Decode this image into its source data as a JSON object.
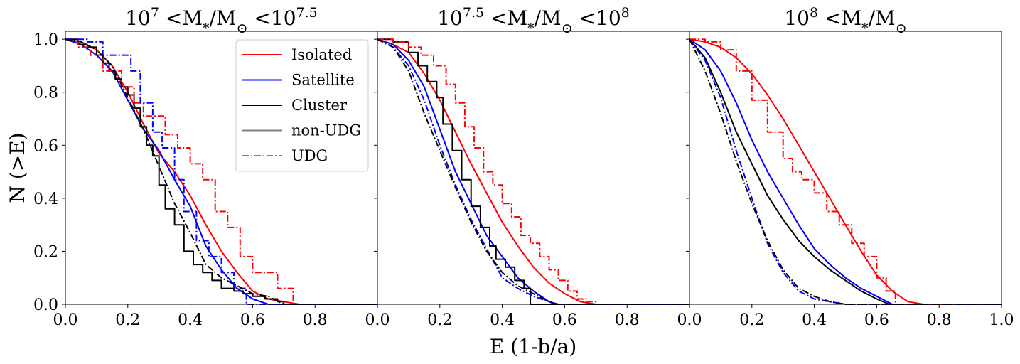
{
  "chart_data": {
    "type": "line",
    "xlabel": "E (1-b/a)",
    "ylabel": "N (>E)",
    "xlim": [
      0,
      1
    ],
    "ylim": [
      0,
      1.03
    ],
    "grid": false,
    "x_ticks": [
      "0.0",
      "0.2",
      "0.4",
      "0.6",
      "0.8"
    ],
    "x_ticks_last_panel": [
      "0.0",
      "0.2",
      "0.4",
      "0.6",
      "0.8",
      "1.0"
    ],
    "y_ticks": [
      "0.0",
      "0.2",
      "0.4",
      "0.6",
      "0.8",
      "1.0"
    ],
    "colors": {
      "Isolated": "#ff0000",
      "Satellite": "#0000ff",
      "Cluster": "#000000"
    },
    "legend": {
      "placement": "upper-right of first panel",
      "entries": [
        {
          "label": "Isolated",
          "color": "#ff0000",
          "style": "solid"
        },
        {
          "label": "Satellite",
          "color": "#0000ff",
          "style": "solid"
        },
        {
          "label": "Cluster",
          "color": "#000000",
          "style": "solid"
        },
        {
          "label": "non-UDG",
          "color": "#808080",
          "style": "solid"
        },
        {
          "label": "UDG",
          "color": "#808080",
          "style": "dashdot"
        }
      ]
    },
    "panels": [
      {
        "title": {
          "a": "10",
          "a_exp": "7",
          "b": " <M",
          "b_sub": "*",
          "c": "/M",
          "c_sub": "⊙",
          "d": " <10",
          "d_exp": "7.5"
        },
        "series": [
          {
            "name": "Isolated",
            "group": "non-UDG",
            "color": "#ff0000",
            "style": "solid",
            "step": false,
            "x": [
              0,
              0.05,
              0.1,
              0.15,
              0.2,
              0.25,
              0.3,
              0.35,
              0.4,
              0.45,
              0.5,
              0.55,
              0.6,
              0.65,
              0.7,
              0.75
            ],
            "y": [
              1.0,
              0.99,
              0.96,
              0.9,
              0.8,
              0.68,
              0.57,
              0.5,
              0.41,
              0.3,
              0.2,
              0.12,
              0.05,
              0.02,
              0.01,
              0.0
            ]
          },
          {
            "name": "Satellite",
            "group": "non-UDG",
            "color": "#0000ff",
            "style": "solid",
            "step": false,
            "x": [
              0,
              0.05,
              0.1,
              0.15,
              0.2,
              0.25,
              0.3,
              0.35,
              0.4,
              0.45,
              0.5,
              0.55,
              0.6,
              0.65
            ],
            "y": [
              1.0,
              0.98,
              0.94,
              0.88,
              0.77,
              0.66,
              0.58,
              0.47,
              0.37,
              0.22,
              0.13,
              0.06,
              0.02,
              0.0
            ]
          },
          {
            "name": "Cluster",
            "group": "non-UDG",
            "color": "#000000",
            "style": "solid",
            "step": true,
            "x": [
              0,
              0.04,
              0.07,
              0.1,
              0.12,
              0.14,
              0.16,
              0.18,
              0.2,
              0.22,
              0.24,
              0.26,
              0.28,
              0.3,
              0.32,
              0.35,
              0.38,
              0.41,
              0.44,
              0.47,
              0.5,
              0.54,
              0.57,
              0.6,
              0.64,
              0.68,
              0.7
            ],
            "y": [
              1.0,
              0.98,
              0.97,
              0.94,
              0.91,
              0.88,
              0.85,
              0.82,
              0.79,
              0.74,
              0.67,
              0.6,
              0.56,
              0.45,
              0.36,
              0.3,
              0.2,
              0.15,
              0.12,
              0.09,
              0.06,
              0.05,
              0.04,
              0.03,
              0.02,
              0.01,
              0.0
            ]
          },
          {
            "name": "Isolated",
            "group": "UDG",
            "color": "#ff0000",
            "style": "dashdot",
            "step": true,
            "x": [
              0,
              0.04,
              0.08,
              0.12,
              0.18,
              0.22,
              0.25,
              0.28,
              0.32,
              0.36,
              0.4,
              0.44,
              0.48,
              0.52,
              0.56,
              0.6,
              0.64,
              0.68,
              0.7,
              0.73
            ],
            "y": [
              1.0,
              0.97,
              0.94,
              0.88,
              0.82,
              0.76,
              0.71,
              0.71,
              0.64,
              0.59,
              0.53,
              0.47,
              0.35,
              0.29,
              0.18,
              0.12,
              0.12,
              0.06,
              0.06,
              0.0
            ]
          },
          {
            "name": "Satellite",
            "group": "UDG",
            "color": "#0000ff",
            "style": "dashdot",
            "step": true,
            "x": [
              0,
              0.07,
              0.12,
              0.17,
              0.21,
              0.24,
              0.28,
              0.31,
              0.35,
              0.38,
              0.42,
              0.46,
              0.5,
              0.54,
              0.58
            ],
            "y": [
              1.0,
              0.99,
              0.94,
              0.94,
              0.88,
              0.76,
              0.65,
              0.59,
              0.47,
              0.35,
              0.24,
              0.18,
              0.12,
              0.06,
              0.0
            ]
          },
          {
            "name": "Cluster",
            "group": "UDG",
            "color": "#000000",
            "style": "dashdot",
            "step": false,
            "x": [
              0,
              0.05,
              0.1,
              0.15,
              0.2,
              0.25,
              0.3,
              0.35,
              0.4,
              0.45,
              0.5,
              0.55,
              0.6,
              0.65,
              0.7
            ],
            "y": [
              1.0,
              0.99,
              0.96,
              0.9,
              0.78,
              0.66,
              0.52,
              0.38,
              0.27,
              0.15,
              0.1,
              0.07,
              0.04,
              0.03,
              0.0
            ]
          }
        ]
      },
      {
        "title": {
          "a": "10",
          "a_exp": "7.5",
          "b": " <M",
          "b_sub": "*",
          "c": "/M",
          "c_sub": "⊙",
          "d": " <10",
          "d_exp": "8"
        },
        "series": [
          {
            "name": "Isolated",
            "group": "non-UDG",
            "color": "#ff0000",
            "style": "solid",
            "step": false,
            "x": [
              0,
              0.05,
              0.1,
              0.15,
              0.2,
              0.25,
              0.3,
              0.35,
              0.4,
              0.45,
              0.5,
              0.55,
              0.6,
              0.65,
              0.7
            ],
            "y": [
              1.0,
              0.98,
              0.95,
              0.87,
              0.77,
              0.65,
              0.53,
              0.42,
              0.31,
              0.22,
              0.14,
              0.08,
              0.04,
              0.01,
              0.0
            ]
          },
          {
            "name": "Satellite",
            "group": "non-UDG",
            "color": "#0000ff",
            "style": "solid",
            "step": false,
            "x": [
              0,
              0.05,
              0.1,
              0.15,
              0.2,
              0.25,
              0.3,
              0.35,
              0.4,
              0.45,
              0.5,
              0.55,
              0.58
            ],
            "y": [
              1.0,
              0.98,
              0.92,
              0.82,
              0.66,
              0.5,
              0.38,
              0.26,
              0.18,
              0.1,
              0.05,
              0.01,
              0.0
            ]
          },
          {
            "name": "Cluster",
            "group": "non-UDG",
            "color": "#000000",
            "style": "solid",
            "step": true,
            "x": [
              0,
              0.05,
              0.1,
              0.13,
              0.16,
              0.19,
              0.21,
              0.24,
              0.27,
              0.3,
              0.33,
              0.36,
              0.38,
              0.41,
              0.44,
              0.47,
              0.49
            ],
            "y": [
              1.0,
              0.99,
              0.95,
              0.9,
              0.84,
              0.78,
              0.68,
              0.58,
              0.47,
              0.37,
              0.29,
              0.22,
              0.17,
              0.14,
              0.09,
              0.06,
              0.0
            ]
          },
          {
            "name": "Isolated",
            "group": "UDG",
            "color": "#ff0000",
            "style": "dashdot",
            "step": true,
            "x": [
              0,
              0.05,
              0.1,
              0.14,
              0.18,
              0.22,
              0.25,
              0.28,
              0.31,
              0.34,
              0.37,
              0.4,
              0.43,
              0.46,
              0.49,
              0.52,
              0.55,
              0.58,
              0.61,
              0.64,
              0.67,
              0.7
            ],
            "y": [
              1.0,
              0.99,
              0.97,
              0.94,
              0.9,
              0.83,
              0.76,
              0.67,
              0.59,
              0.5,
              0.45,
              0.38,
              0.33,
              0.26,
              0.23,
              0.18,
              0.13,
              0.09,
              0.05,
              0.02,
              0.01,
              0.0
            ]
          },
          {
            "name": "Satellite",
            "group": "UDG",
            "color": "#0000ff",
            "style": "dashdot",
            "step": false,
            "x": [
              0,
              0.05,
              0.1,
              0.15,
              0.2,
              0.25,
              0.3,
              0.35,
              0.4,
              0.45,
              0.5,
              0.55,
              0.57
            ],
            "y": [
              1.0,
              0.97,
              0.9,
              0.77,
              0.6,
              0.45,
              0.32,
              0.21,
              0.1,
              0.06,
              0.03,
              0.01,
              0.0
            ]
          },
          {
            "name": "Cluster",
            "group": "UDG",
            "color": "#000000",
            "style": "dashdot",
            "step": false,
            "x": [
              0,
              0.05,
              0.1,
              0.15,
              0.2,
              0.25,
              0.3,
              0.35,
              0.4,
              0.45,
              0.5,
              0.55,
              0.57
            ],
            "y": [
              1.0,
              0.97,
              0.88,
              0.72,
              0.58,
              0.44,
              0.31,
              0.2,
              0.12,
              0.07,
              0.04,
              0.01,
              0.0
            ]
          }
        ]
      },
      {
        "title": {
          "a": "10",
          "a_exp": "8",
          "b": " <M",
          "b_sub": "*",
          "c": "/M",
          "c_sub": "⊙",
          "d": "",
          "d_exp": ""
        },
        "series": [
          {
            "name": "Isolated",
            "group": "non-UDG",
            "color": "#ff0000",
            "style": "solid",
            "step": false,
            "x": [
              0,
              0.05,
              0.1,
              0.15,
              0.2,
              0.25,
              0.3,
              0.35,
              0.4,
              0.45,
              0.5,
              0.55,
              0.6,
              0.65,
              0.7,
              0.75
            ],
            "y": [
              1.0,
              0.99,
              0.97,
              0.93,
              0.87,
              0.79,
              0.7,
              0.6,
              0.5,
              0.4,
              0.3,
              0.2,
              0.11,
              0.05,
              0.01,
              0.0
            ]
          },
          {
            "name": "Satellite",
            "group": "non-UDG",
            "color": "#0000ff",
            "style": "solid",
            "step": false,
            "x": [
              0,
              0.05,
              0.1,
              0.15,
              0.2,
              0.25,
              0.3,
              0.35,
              0.4,
              0.45,
              0.5,
              0.55,
              0.6,
              0.65,
              0.66
            ],
            "y": [
              1.0,
              0.96,
              0.88,
              0.76,
              0.62,
              0.5,
              0.4,
              0.3,
              0.21,
              0.15,
              0.1,
              0.06,
              0.03,
              0.0,
              0.0
            ]
          },
          {
            "name": "Cluster",
            "group": "non-UDG",
            "color": "#000000",
            "style": "solid",
            "step": false,
            "x": [
              0,
              0.05,
              0.1,
              0.15,
              0.2,
              0.25,
              0.3,
              0.35,
              0.4,
              0.45,
              0.5,
              0.55,
              0.6,
              0.64
            ],
            "y": [
              1.0,
              0.93,
              0.8,
              0.65,
              0.53,
              0.41,
              0.32,
              0.24,
              0.18,
              0.13,
              0.09,
              0.05,
              0.02,
              0.0
            ]
          },
          {
            "name": "Isolated",
            "group": "UDG",
            "color": "#ff0000",
            "style": "dashdot",
            "step": true,
            "x": [
              0,
              0.05,
              0.1,
              0.15,
              0.2,
              0.25,
              0.3,
              0.33,
              0.36,
              0.4,
              0.44,
              0.48,
              0.52,
              0.56,
              0.6,
              0.63,
              0.66
            ],
            "y": [
              1.0,
              0.99,
              0.96,
              0.88,
              0.77,
              0.65,
              0.55,
              0.5,
              0.47,
              0.42,
              0.35,
              0.3,
              0.23,
              0.18,
              0.1,
              0.05,
              0.0
            ]
          },
          {
            "name": "Satellite",
            "group": "UDG",
            "color": "#0000ff",
            "style": "dashdot",
            "step": false,
            "x": [
              0,
              0.05,
              0.1,
              0.15,
              0.2,
              0.25,
              0.3,
              0.35,
              0.4,
              0.45,
              0.5
            ],
            "y": [
              1.0,
              0.92,
              0.78,
              0.58,
              0.4,
              0.23,
              0.12,
              0.05,
              0.02,
              0.01,
              0.0
            ]
          },
          {
            "name": "Cluster",
            "group": "UDG",
            "color": "#000000",
            "style": "dashdot",
            "step": false,
            "x": [
              0,
              0.05,
              0.1,
              0.15,
              0.2,
              0.25,
              0.3,
              0.35,
              0.4,
              0.45,
              0.5
            ],
            "y": [
              1.0,
              0.88,
              0.72,
              0.54,
              0.38,
              0.24,
              0.13,
              0.06,
              0.03,
              0.01,
              0.0
            ]
          }
        ]
      }
    ]
  }
}
